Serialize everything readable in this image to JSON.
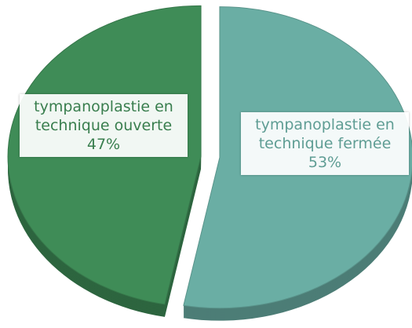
{
  "chart_data": {
    "type": "pie",
    "categories": [
      "tympanoplastie en technique ouverte",
      "tympanoplastie en technique fermée"
    ],
    "values": [
      47,
      53
    ],
    "value_labels": [
      "47%",
      "53%"
    ],
    "colors": [
      "#3f8c57",
      "#6aaea4"
    ]
  }
}
